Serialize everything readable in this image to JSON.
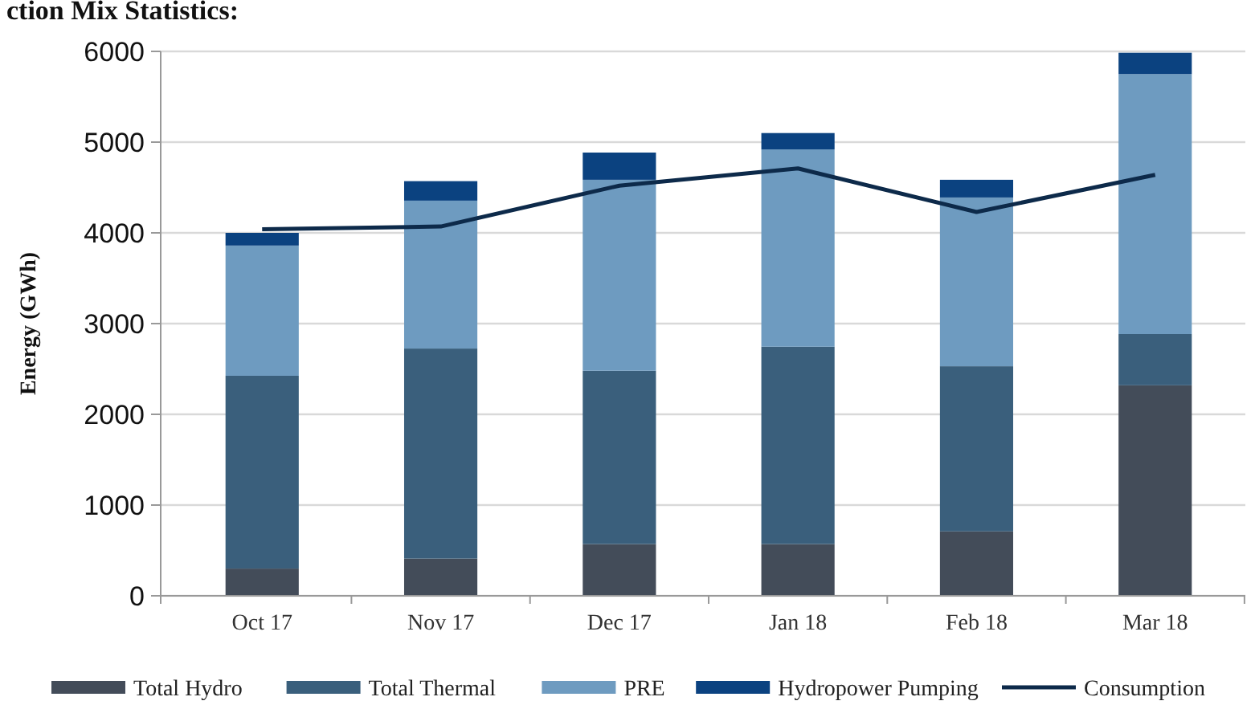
{
  "chart_data": {
    "type": "bar",
    "title": "ction Mix Statistics:",
    "ylabel": "Energy (GWh)",
    "categories": [
      "Oct 17",
      "Nov 17",
      "Dec 17",
      "Jan 18",
      "Feb 18",
      "Mar 18"
    ],
    "stacked": true,
    "ylim": [
      0,
      6000
    ],
    "yticks": [
      0,
      1000,
      2000,
      3000,
      4000,
      5000,
      6000
    ],
    "grid": "y",
    "legend": "bottom",
    "series": [
      {
        "name": "Total Hydro",
        "color": "#434c59",
        "values": [
          300,
          410,
          570,
          570,
          710,
          2320
        ]
      },
      {
        "name": "Total Thermal",
        "color": "#3a5f7c",
        "values": [
          2125,
          2315,
          1910,
          2175,
          1820,
          565
        ]
      },
      {
        "name": "PRE",
        "color": "#6e9bc0",
        "values": [
          1435,
          1630,
          2105,
          2175,
          1860,
          2865
        ]
      },
      {
        "name": "Hydropower Pumping",
        "color": "#0b4280",
        "values": [
          140,
          215,
          300,
          180,
          195,
          235
        ]
      },
      {
        "name": "Consumption",
        "type": "line",
        "color": "#0d2a4a",
        "values": [
          4040,
          4070,
          4520,
          4710,
          4230,
          4640
        ]
      }
    ]
  }
}
